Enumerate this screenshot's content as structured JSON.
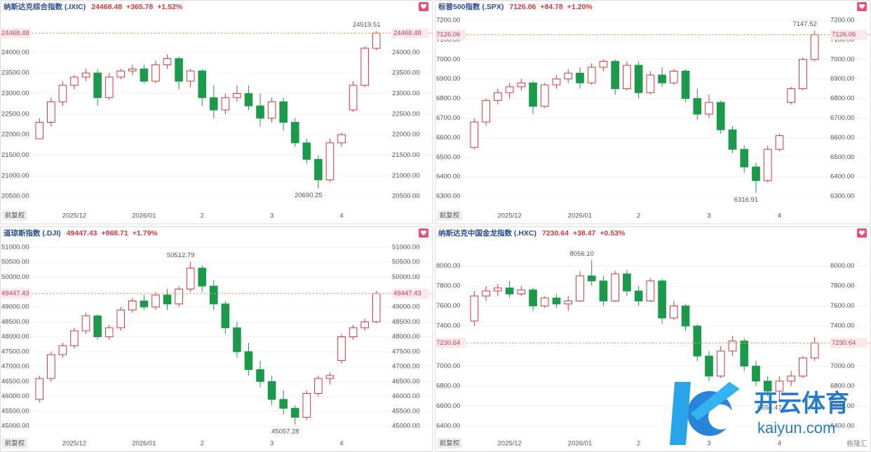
{
  "chart_data": [
    {
      "type": "candlestick",
      "title": "纳斯达克综合指数 (.IXIC)",
      "last": 24468.48,
      "change": "+365.78",
      "change_pct": "+1.52%",
      "adjust_button": "前复权",
      "ylim": [
        20230,
        24900
      ],
      "yticks": [
        {
          "value": 20500,
          "label": "20500.00"
        },
        {
          "value": 21000,
          "label": "21000.00"
        },
        {
          "value": 21500,
          "label": "21500.00"
        },
        {
          "value": 22000,
          "label": "22000.00"
        },
        {
          "value": 22500,
          "label": "22500.00"
        },
        {
          "value": 23000,
          "label": "23000.00"
        },
        {
          "value": 23500,
          "label": "23500.00"
        },
        {
          "value": 24000,
          "label": "24000.00"
        }
      ],
      "xticks": [
        {
          "value": 3,
          "label": "2025/12"
        },
        {
          "value": 9,
          "label": "2026/01"
        },
        {
          "value": 14,
          "label": "2"
        },
        {
          "value": 20,
          "label": "3"
        },
        {
          "value": 26,
          "label": "4"
        }
      ],
      "open": [
        21900,
        22300,
        22800,
        23200,
        23400,
        23500,
        22900,
        23400,
        23550,
        23600,
        23300,
        23700,
        23850,
        23300,
        23550,
        22900,
        22600,
        22900,
        23000,
        22700,
        22400,
        22800,
        22300,
        21800,
        21400,
        20900,
        21800,
        22600,
        23200,
        24100
      ],
      "high": [
        22400,
        22900,
        23300,
        23450,
        23600,
        23600,
        23500,
        23600,
        23700,
        23700,
        23800,
        23950,
        23900,
        23600,
        23600,
        23200,
        23000,
        23200,
        23200,
        23000,
        22900,
        22900,
        22400,
        21900,
        21500,
        21900,
        22050,
        23300,
        24150,
        24519.51
      ],
      "low": [
        21900,
        22200,
        22700,
        23100,
        23300,
        22700,
        22850,
        23350,
        23450,
        23250,
        23250,
        23600,
        23100,
        23150,
        22700,
        22400,
        22500,
        22800,
        22600,
        22200,
        22300,
        22100,
        21700,
        21300,
        20690.25,
        20850,
        21700,
        22550,
        23150,
        24050
      ],
      "close": [
        22300,
        22800,
        23200,
        23400,
        23500,
        22900,
        23400,
        23550,
        23600,
        23300,
        23700,
        23850,
        23300,
        23550,
        22900,
        22600,
        22900,
        23000,
        22700,
        22400,
        22800,
        22300,
        21800,
        21400,
        20900,
        21800,
        22000,
        23200,
        24100,
        24468.48
      ],
      "annotations": [
        24519.51,
        20690.25
      ],
      "up_color": "#d9363e",
      "down_color": "#1a9a4a",
      "grid": true
    },
    {
      "type": "candlestick",
      "title": "标普500指数 (.SPX)",
      "last": 7126.06,
      "change": "+84.78",
      "change_pct": "+1.20%",
      "adjust_button": "前复权",
      "ylim": [
        6243,
        7225
      ],
      "yticks": [
        {
          "value": 6300,
          "label": "6300.00"
        },
        {
          "value": 6400,
          "label": "6400.00"
        },
        {
          "value": 6500,
          "label": "6500.00"
        },
        {
          "value": 6600,
          "label": "6600.00"
        },
        {
          "value": 6700,
          "label": "6700.00"
        },
        {
          "value": 6800,
          "label": "6800.00"
        },
        {
          "value": 6900,
          "label": "6900.00"
        },
        {
          "value": 7000,
          "label": "7000.00"
        },
        {
          "value": 7100,
          "label": "7100.00"
        },
        {
          "value": 7200,
          "label": "7200.00"
        }
      ],
      "xticks": [
        {
          "value": 3,
          "label": "2025/12"
        },
        {
          "value": 9,
          "label": "2026/01"
        },
        {
          "value": 14,
          "label": "2"
        },
        {
          "value": 20,
          "label": "3"
        },
        {
          "value": 26,
          "label": "4"
        }
      ],
      "open": [
        6550,
        6680,
        6790,
        6830,
        6860,
        6880,
        6760,
        6870,
        6900,
        6930,
        6880,
        6960,
        6990,
        6850,
        6970,
        6830,
        6920,
        6880,
        6940,
        6800,
        6720,
        6780,
        6640,
        6540,
        6450,
        6380,
        6540,
        6780,
        6850,
        7000
      ],
      "high": [
        6700,
        6800,
        6850,
        6880,
        6900,
        6890,
        6880,
        6920,
        6950,
        6960,
        6980,
        7000,
        7000,
        6990,
        6990,
        6940,
        6960,
        6950,
        6950,
        6850,
        6820,
        6790,
        6660,
        6560,
        6470,
        6560,
        6620,
        6860,
        7010,
        7147.52
      ],
      "low": [
        6540,
        6660,
        6770,
        6800,
        6840,
        6720,
        6750,
        6850,
        6880,
        6850,
        6870,
        6940,
        6820,
        6840,
        6800,
        6820,
        6860,
        6870,
        6780,
        6690,
        6700,
        6620,
        6520,
        6420,
        6316.91,
        6370,
        6530,
        6770,
        6840,
        6990
      ],
      "close": [
        6680,
        6790,
        6830,
        6860,
        6880,
        6760,
        6870,
        6900,
        6930,
        6880,
        6960,
        6990,
        6850,
        6970,
        6830,
        6920,
        6880,
        6940,
        6800,
        6720,
        6780,
        6640,
        6540,
        6450,
        6380,
        6540,
        6610,
        6850,
        7000,
        7126.06
      ],
      "annotations": [
        7147.52,
        6316.91
      ],
      "up_color": "#d9363e",
      "down_color": "#1a9a4a",
      "grid": true
    },
    {
      "type": "candlestick",
      "title": "道琼斯指数 (.DJI)",
      "last": 49447.43,
      "change": "+868.71",
      "change_pct": "+1.79%",
      "adjust_button": "前复权",
      "ylim": [
        44700,
        51185
      ],
      "yticks": [
        {
          "value": 45000,
          "label": "45000.00"
        },
        {
          "value": 45500,
          "label": "45500.00"
        },
        {
          "value": 46000,
          "label": "46000.00"
        },
        {
          "value": 46500,
          "label": "46500.00"
        },
        {
          "value": 47000,
          "label": "47000.00"
        },
        {
          "value": 47500,
          "label": "47500.00"
        },
        {
          "value": 48000,
          "label": "48000.00"
        },
        {
          "value": 48500,
          "label": "48500.00"
        },
        {
          "value": 49000,
          "label": "49000.00"
        },
        {
          "value": 49500,
          "label": "49500.00"
        },
        {
          "value": 50000,
          "label": "50000.00"
        },
        {
          "value": 50500,
          "label": "50500.00"
        },
        {
          "value": 51000,
          "label": "51000.00"
        }
      ],
      "xticks": [
        {
          "value": 3,
          "label": "2025/12"
        },
        {
          "value": 9,
          "label": "2026/01"
        },
        {
          "value": 14,
          "label": "2"
        },
        {
          "value": 20,
          "label": "3"
        },
        {
          "value": 26,
          "label": "4"
        }
      ],
      "open": [
        45900,
        46600,
        47400,
        47700,
        48200,
        48700,
        48000,
        48300,
        48900,
        49200,
        49000,
        49400,
        49100,
        49600,
        50300,
        49700,
        49100,
        48300,
        47500,
        46900,
        46500,
        45900,
        45600,
        45300,
        46100,
        46600,
        47200,
        48000,
        48300,
        48500
      ],
      "high": [
        46700,
        47500,
        47800,
        48300,
        48800,
        48750,
        48400,
        49000,
        49300,
        49400,
        49500,
        49600,
        49700,
        50512.79,
        50400,
        49900,
        49200,
        48500,
        47800,
        47200,
        46700,
        46200,
        45700,
        46200,
        46700,
        46800,
        48100,
        48400,
        48600,
        49550
      ],
      "low": [
        45800,
        46500,
        47300,
        47600,
        48100,
        47900,
        47900,
        48200,
        48800,
        48900,
        48900,
        48900,
        49000,
        49500,
        49500,
        48900,
        48100,
        47300,
        46700,
        46300,
        45700,
        45400,
        45057.28,
        45200,
        46000,
        46400,
        47100,
        47900,
        48200,
        48450
      ],
      "close": [
        46600,
        47400,
        47700,
        48200,
        48700,
        48000,
        48300,
        48900,
        49200,
        49000,
        49400,
        49100,
        49600,
        50300,
        49700,
        49100,
        48300,
        47500,
        46900,
        46500,
        45900,
        45600,
        45300,
        46100,
        46600,
        46700,
        48000,
        48300,
        48500,
        49447.43
      ],
      "annotations": [
        50512.79,
        45057.28
      ],
      "up_color": "#d9363e",
      "down_color": "#1a9a4a",
      "grid": true
    },
    {
      "type": "candlestick",
      "title": "纳斯达克中国金龙指数 (.HXC)",
      "last": 7230.64,
      "change": "+38.47",
      "change_pct": "+0.53%",
      "adjust_button": "前复权",
      "ylim": [
        6310,
        8241
      ],
      "yticks": [
        {
          "value": 6400,
          "label": "6400.00"
        },
        {
          "value": 6600,
          "label": "6600.00"
        },
        {
          "value": 6800,
          "label": "6800.00"
        },
        {
          "value": 7000,
          "label": "7000.00"
        },
        {
          "value": 7200,
          "label": "7200.00"
        },
        {
          "value": 7400,
          "label": "7400.00"
        },
        {
          "value": 7600,
          "label": "7600.00"
        },
        {
          "value": 7800,
          "label": "7800.00"
        },
        {
          "value": 8000,
          "label": "8000.00"
        }
      ],
      "xticks": [
        {
          "value": 3,
          "label": "2025/12"
        },
        {
          "value": 9,
          "label": "2026/01"
        },
        {
          "value": 14,
          "label": "2"
        },
        {
          "value": 20,
          "label": "3"
        },
        {
          "value": 26,
          "label": "4"
        }
      ],
      "open": [
        7450,
        7700,
        7750,
        7780,
        7720,
        7760,
        7600,
        7680,
        7620,
        7650,
        7900,
        7850,
        7650,
        7920,
        7750,
        7650,
        7850,
        7480,
        7600,
        7400,
        7100,
        6900,
        7150,
        7250,
        7000,
        6850,
        6750,
        6850,
        6900,
        7080
      ],
      "high": [
        7750,
        7800,
        7820,
        7850,
        7800,
        7780,
        7700,
        7720,
        7700,
        7950,
        8056.1,
        7900,
        7950,
        7960,
        7800,
        7880,
        7870,
        7650,
        7620,
        7420,
        7150,
        7200,
        7300,
        7280,
        7050,
        6900,
        6900,
        6950,
        7100,
        7290
      ],
      "low": [
        7400,
        7650,
        7700,
        7680,
        7700,
        7550,
        7580,
        7580,
        7550,
        7640,
        7800,
        7600,
        7640,
        7700,
        7600,
        7640,
        7420,
        7460,
        7350,
        7050,
        6850,
        6880,
        7100,
        6950,
        6800,
        6700,
        6654.47,
        6800,
        6880,
        7050
      ],
      "close": [
        7700,
        7750,
        7780,
        7720,
        7760,
        7600,
        7680,
        7620,
        7650,
        7900,
        7850,
        7650,
        7920,
        7750,
        7650,
        7850,
        7480,
        7600,
        7400,
        7100,
        6900,
        7150,
        7250,
        7000,
        6850,
        6750,
        6850,
        6900,
        7080,
        7230.64
      ],
      "annotations": [
        {
          "value": 8056.1,
          "label": "8056.10"
        },
        6654.47
      ],
      "up_color": "#d9363e",
      "down_color": "#1a9a4a",
      "grid": true
    }
  ],
  "watermark": {
    "title": "开云体育",
    "url": "kaiyun.com",
    "source": "格隆汇"
  }
}
